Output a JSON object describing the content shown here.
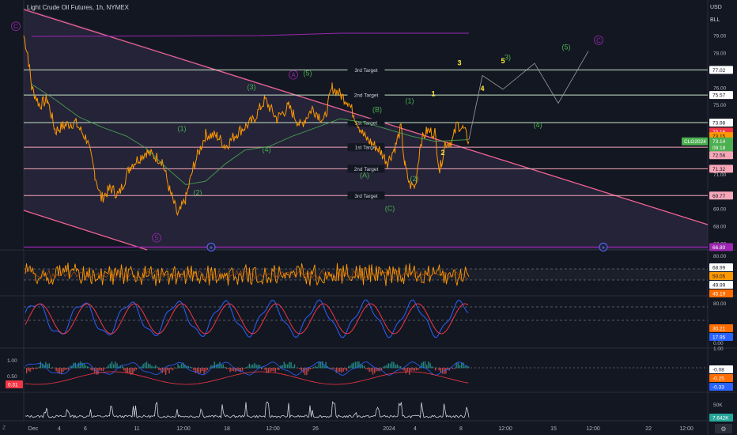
{
  "header": {
    "symbol_title": "Light Crude Oil Futures, 1h, NYMEX",
    "currency": "USD",
    "unit": "BLL"
  },
  "price_axis": {
    "ticks": [
      "79.00",
      "78.00",
      "76.00",
      "75.00",
      "74.00",
      "73.00",
      "72.00",
      "71.00",
      "69.00",
      "68.00",
      "67.00"
    ],
    "ticks_val": [
      79,
      78,
      76,
      75,
      74,
      73,
      72,
      71,
      69,
      68,
      67
    ],
    "badges": [
      {
        "text": "77.02",
        "value": 77.02,
        "bg": "#ffffff",
        "fg": "#131722"
      },
      {
        "text": "75.57",
        "value": 75.57,
        "bg": "#ffffff",
        "fg": "#131722"
      },
      {
        "text": "73.98",
        "value": 73.98,
        "bg": "#ffffff",
        "fg": "#131722"
      },
      {
        "text": "73.16",
        "value": 73.46,
        "bg": "#f23645",
        "fg": "#ffffff"
      },
      {
        "text": "73.15",
        "value": 73.2,
        "bg": "#ff9800",
        "fg": "#131722"
      },
      {
        "text": "73.14",
        "value": 72.9,
        "bg": "#4caf50",
        "fg": "#ffffff"
      },
      {
        "text": "09:18",
        "value": 72.55,
        "bg": "#4caf50",
        "fg": "#ffffff"
      },
      {
        "text": "72.56",
        "value": 72.1,
        "bg": "#f7a8b8",
        "fg": "#131722"
      },
      {
        "text": "71.32",
        "value": 71.32,
        "bg": "#f7a8b8",
        "fg": "#131722"
      },
      {
        "text": "69.77",
        "value": 69.77,
        "bg": "#f7a8b8",
        "fg": "#131722"
      },
      {
        "text": "66.80",
        "value": 66.8,
        "bg": "#9c27b0",
        "fg": "#ffffff"
      }
    ],
    "symbol_tag": "CLG2024"
  },
  "levels": [
    {
      "label": "3rd Target",
      "value": 77.02,
      "color": "#c8e6c9"
    },
    {
      "label": "2nd Target",
      "value": 75.57,
      "color": "#c8e6c9"
    },
    {
      "label": "1st Target",
      "value": 73.98,
      "color": "#c8e6c9"
    },
    {
      "label": "1st Target",
      "value": 72.56,
      "color": "#f7a8b8"
    },
    {
      "label": "2nd Target",
      "value": 71.32,
      "color": "#f7a8b8"
    },
    {
      "label": "3rd Target",
      "value": 69.77,
      "color": "#f7a8b8"
    }
  ],
  "wave_labels": [
    {
      "text": "C",
      "style": "circle",
      "color": "#9c27b0",
      "x": 20,
      "y": 79.4
    },
    {
      "text": "(1)",
      "style": "plain",
      "color": "#4caf50",
      "x": 230,
      "y": 73.5
    },
    {
      "text": "(2)",
      "style": "plain",
      "color": "#4caf50",
      "x": 250,
      "y": 69.8
    },
    {
      "text": "(3)",
      "style": "plain",
      "color": "#4caf50",
      "x": 318,
      "y": 75.9
    },
    {
      "text": "(4)",
      "style": "plain",
      "color": "#4caf50",
      "x": 337,
      "y": 72.3
    },
    {
      "text": "(5)",
      "style": "plain",
      "color": "#4caf50",
      "x": 389,
      "y": 76.7
    },
    {
      "text": "A",
      "style": "circle",
      "color": "#9c27b0",
      "x": 371,
      "y": 76.6
    },
    {
      "text": "5",
      "style": "circle",
      "color": "#9c27b0",
      "x": 198,
      "y": 67.2
    },
    {
      "text": "(B)",
      "style": "plain",
      "color": "#4caf50",
      "x": 477,
      "y": 74.6
    },
    {
      "text": "(A)",
      "style": "plain",
      "color": "#4caf50",
      "x": 461,
      "y": 70.8
    },
    {
      "text": "(C)",
      "style": "plain",
      "color": "#4caf50",
      "x": 493,
      "y": 68.9
    },
    {
      "text": "(1)",
      "style": "plain",
      "color": "#4caf50",
      "x": 518,
      "y": 75.1
    },
    {
      "text": "(2)",
      "style": "plain",
      "color": "#4caf50",
      "x": 524,
      "y": 70.6
    },
    {
      "text": "1",
      "style": "plain",
      "color": "#ffeb3b",
      "x": 548,
      "y": 75.5
    },
    {
      "text": "2",
      "style": "plain",
      "color": "#ffeb3b",
      "x": 560,
      "y": 72.1
    },
    {
      "text": "3",
      "style": "plain",
      "color": "#ffeb3b",
      "x": 581,
      "y": 77.3
    },
    {
      "text": "4",
      "style": "plain",
      "color": "#ffeb3b",
      "x": 610,
      "y": 75.8
    },
    {
      "text": "5",
      "style": "plain",
      "color": "#ffeb3b",
      "x": 636,
      "y": 77.4
    },
    {
      "text": "3)",
      "style": "plain",
      "color": "#4caf50",
      "x": 642,
      "y": 77.6
    },
    {
      "text": "(4)",
      "style": "plain",
      "color": "#4caf50",
      "x": 680,
      "y": 73.7
    },
    {
      "text": "(5)",
      "style": "plain",
      "color": "#4caf50",
      "x": 716,
      "y": 78.2
    },
    {
      "text": "C",
      "style": "circle",
      "color": "#9c27b0",
      "x": 757,
      "y": 78.6
    }
  ],
  "time_axis": {
    "labels": [
      "Dec",
      "4",
      "6",
      "11",
      "12:00",
      "18",
      "12:00",
      "26",
      "2024",
      "4",
      "8",
      "12:00",
      "15",
      "12:00",
      "22",
      "12:00"
    ],
    "x": [
      42,
      75,
      108,
      173,
      232,
      287,
      345,
      399,
      492,
      525,
      583,
      639,
      700,
      750,
      820,
      868
    ]
  },
  "indicators": [
    {
      "name": "rsi",
      "ticks": [
        "80.00"
      ],
      "badges": [
        {
          "text": "68.99",
          "bg": "#ffffff",
          "fg": "#131722"
        },
        {
          "text": "50.05",
          "bg": "#ff9800",
          "fg": "#131722"
        },
        {
          "text": "49.99",
          "bg": "#ffffff",
          "fg": "#131722"
        },
        {
          "text": "45.19",
          "bg": "#ff6d00",
          "fg": "#ffffff"
        }
      ]
    },
    {
      "name": "stoch",
      "ticks": [
        "80.00"
      ],
      "badges": [
        {
          "text": "30.21",
          "bg": "#ff6d00",
          "fg": "#ffffff"
        },
        {
          "text": "17.95",
          "bg": "#2962ff",
          "fg": "#ffffff"
        }
      ]
    },
    {
      "name": "macd",
      "ticks": [
        "0.00",
        "1.00"
      ],
      "badges": [
        {
          "text": "-0.08",
          "bg": "#ffffff",
          "fg": "#131722"
        },
        {
          "text": "-0.25",
          "bg": "#ff6d00",
          "fg": "#ffffff"
        },
        {
          "text": "-0.33",
          "bg": "#2962ff",
          "fg": "#ffffff"
        }
      ],
      "left_labels": [
        "1.00",
        "0.50"
      ],
      "left_badge": "0.31"
    },
    {
      "name": "volume",
      "ticks": [
        "50K"
      ],
      "badges": [
        {
          "text": "7.642K",
          "bg": "#26a69a",
          "fg": "#ffffff"
        }
      ]
    }
  ],
  "bottom": {
    "z_label": "Z"
  }
}
